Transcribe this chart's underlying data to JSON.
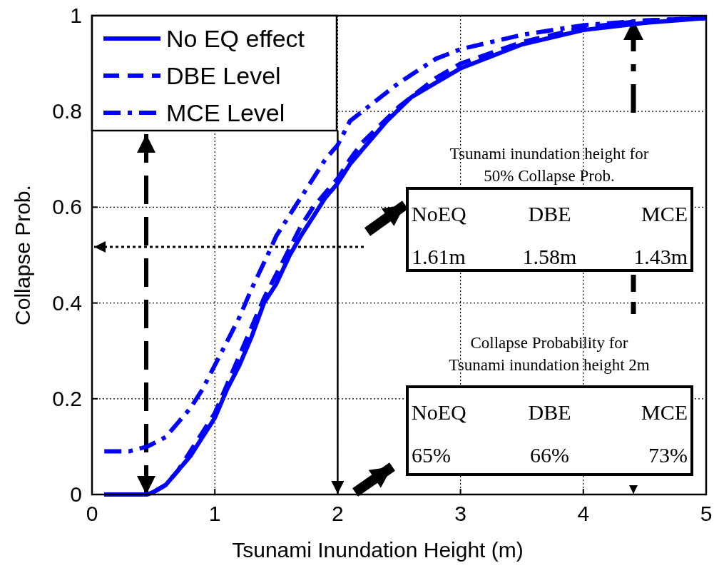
{
  "chart_data": {
    "type": "line",
    "xlabel": "Tsunami Inundation Height (m)",
    "ylabel": "Collapse Prob.",
    "xlim": [
      0,
      5
    ],
    "ylim": [
      0,
      1
    ],
    "xticks": [
      0,
      1,
      2,
      3,
      4,
      5
    ],
    "yticks": [
      0,
      0.2,
      0.4,
      0.6,
      0.8,
      1
    ],
    "grid": true,
    "legend": "top left",
    "series": [
      {
        "name": "No EQ effect",
        "color": "#0000ff",
        "line_style": "solid",
        "x": [
          0.1,
          0.45,
          0.5,
          0.6,
          0.7,
          0.8,
          0.9,
          1.0,
          1.1,
          1.2,
          1.3,
          1.4,
          1.5,
          1.61,
          1.7,
          1.8,
          1.9,
          2.0,
          2.1,
          2.2,
          2.4,
          2.6,
          2.8,
          3.0,
          3.5,
          4.0,
          4.5,
          5.0
        ],
        "values": [
          0,
          0,
          0.005,
          0.02,
          0.05,
          0.08,
          0.12,
          0.16,
          0.22,
          0.27,
          0.33,
          0.4,
          0.44,
          0.5,
          0.54,
          0.58,
          0.62,
          0.65,
          0.69,
          0.72,
          0.78,
          0.83,
          0.86,
          0.89,
          0.94,
          0.97,
          0.985,
          0.995
        ]
      },
      {
        "name": "DBE Level",
        "color": "#0000ff",
        "line_style": "dashed",
        "x": [
          0.1,
          0.45,
          0.5,
          0.6,
          0.7,
          0.8,
          0.9,
          1.0,
          1.1,
          1.2,
          1.3,
          1.4,
          1.5,
          1.58,
          1.7,
          1.8,
          1.9,
          2.0,
          2.1,
          2.2,
          2.5,
          2.8,
          3.0,
          3.5,
          4.0,
          4.5,
          5.0
        ],
        "values": [
          0,
          0,
          0.005,
          0.02,
          0.05,
          0.09,
          0.13,
          0.17,
          0.23,
          0.29,
          0.35,
          0.41,
          0.46,
          0.5,
          0.56,
          0.6,
          0.63,
          0.66,
          0.7,
          0.735,
          0.81,
          0.87,
          0.9,
          0.945,
          0.975,
          0.99,
          0.995
        ]
      },
      {
        "name": "MCE Level",
        "color": "#0000ff",
        "line_style": "dashdot",
        "x": [
          0.1,
          0.3,
          0.45,
          0.6,
          0.7,
          0.8,
          0.9,
          1.0,
          1.1,
          1.2,
          1.3,
          1.43,
          1.5,
          1.6,
          1.7,
          1.8,
          1.9,
          2.0,
          2.1,
          2.2,
          2.5,
          2.8,
          3.0,
          3.5,
          4.0,
          4.5,
          5.0
        ],
        "values": [
          0.09,
          0.09,
          0.1,
          0.12,
          0.15,
          0.18,
          0.22,
          0.27,
          0.32,
          0.37,
          0.43,
          0.5,
          0.54,
          0.58,
          0.62,
          0.66,
          0.7,
          0.73,
          0.78,
          0.8,
          0.86,
          0.91,
          0.93,
          0.96,
          0.98,
          0.99,
          0.995
        ]
      }
    ],
    "annotations": [
      "Tsunami inundation height for\n50% Collapse Prob.",
      "NoEQ",
      "DBE",
      "MCE",
      "1.61m",
      "1.58m",
      "1.43m",
      "Collapse Probability for\nTsunami inundation height 2m",
      "NoEQ",
      "DBE",
      "MCE",
      "65%",
      "66%",
      "73%"
    ]
  }
}
